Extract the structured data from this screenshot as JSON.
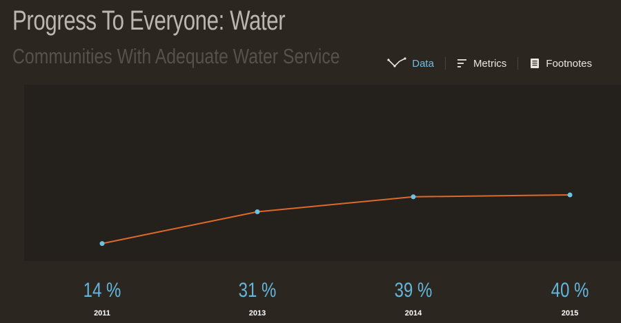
{
  "header": {
    "title": "Progress To Everyone: Water",
    "subtitle": "Communities With Adequate Water Service"
  },
  "tabs": [
    {
      "label": "Data",
      "icon": "line-chart-icon",
      "active": true
    },
    {
      "label": "Metrics",
      "icon": "metrics-icon",
      "active": false
    },
    {
      "label": "Footnotes",
      "icon": "footnotes-icon",
      "active": false
    }
  ],
  "colors": {
    "line": "#e0692a",
    "point": "#6ec1e4",
    "value_text": "#63b5dc"
  },
  "chart_data": {
    "type": "line",
    "title": "Progress To Everyone: Water",
    "subtitle": "Communities With Adequate Water Service",
    "categories": [
      "2011",
      "2013",
      "2014",
      "2015"
    ],
    "values": [
      14,
      31,
      39,
      40
    ],
    "value_labels": [
      "14 %",
      "31 %",
      "39 %",
      "40 %"
    ],
    "series": [
      {
        "name": "Communities With Adequate Water Service",
        "values": [
          14,
          31,
          39,
          40
        ]
      }
    ],
    "unit": "%",
    "xlabel": "",
    "ylabel": "",
    "ylim": [
      0,
      100
    ],
    "grid": false
  }
}
